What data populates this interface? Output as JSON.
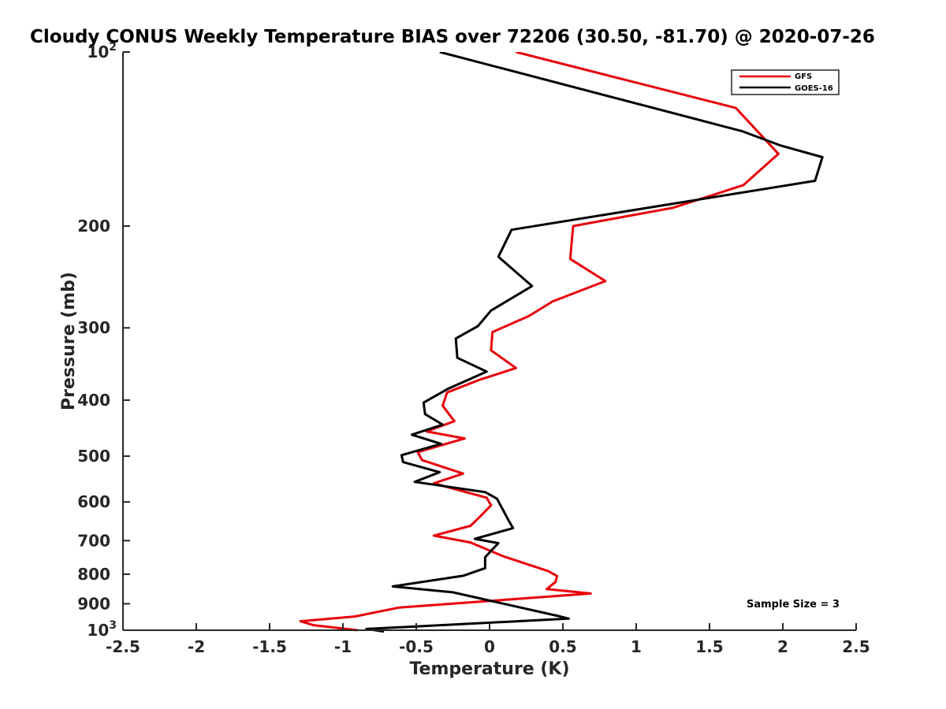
{
  "chart_data": {
    "type": "line",
    "title": "Cloudy CONUS Weekly Temperature BIAS over 72206 (30.50, -81.70) @ 2020-07-26",
    "xlabel": "Temperature (K)",
    "ylabel": "Pressure (mb)",
    "xlim": [
      -2.5,
      2.5
    ],
    "ylim": [
      100,
      1000
    ],
    "y_scale": "log",
    "y_reversed": true,
    "grid": false,
    "legend_position": "top-right",
    "x_ticks": [
      -2.5,
      -2,
      -1.5,
      -1,
      -0.5,
      0,
      0.5,
      1,
      1.5,
      2,
      2.5
    ],
    "x_tick_labels": [
      "-2.5",
      "-2",
      "-1.5",
      "-1",
      "-0.5",
      "0",
      "0.5",
      "1",
      "1.5",
      "2",
      "2.5"
    ],
    "y_ticks": [
      {
        "value": 100,
        "base": "10",
        "exp": "2"
      },
      {
        "value": 200,
        "label": "200"
      },
      {
        "value": 300,
        "label": "300"
      },
      {
        "value": 400,
        "label": "400"
      },
      {
        "value": 500,
        "label": "500"
      },
      {
        "value": 600,
        "label": "600"
      },
      {
        "value": 700,
        "label": "700"
      },
      {
        "value": 800,
        "label": "800"
      },
      {
        "value": 900,
        "label": "900"
      },
      {
        "value": 1000,
        "base": "10",
        "exp": "3"
      }
    ],
    "series": [
      {
        "name": "GFS",
        "color": "#e8000b",
        "points": [
          [
            0.18,
            100
          ],
          [
            1.68,
            125
          ],
          [
            1.86,
            140
          ],
          [
            1.97,
            150
          ],
          [
            1.73,
            170
          ],
          [
            1.25,
            186
          ],
          [
            0.57,
            200
          ],
          [
            0.55,
            228
          ],
          [
            0.79,
            249
          ],
          [
            0.43,
            270
          ],
          [
            0.27,
            286
          ],
          [
            0.02,
            305
          ],
          [
            0.01,
            328
          ],
          [
            0.18,
            352
          ],
          [
            -0.07,
            369
          ],
          [
            -0.29,
            388
          ],
          [
            -0.32,
            409
          ],
          [
            -0.24,
            435
          ],
          [
            -0.43,
            453
          ],
          [
            -0.17,
            466
          ],
          [
            -0.49,
            492
          ],
          [
            -0.46,
            508
          ],
          [
            -0.18,
            536
          ],
          [
            -0.38,
            557
          ],
          [
            -0.02,
            590
          ],
          [
            0.01,
            608
          ],
          [
            -0.07,
            638
          ],
          [
            -0.13,
            660
          ],
          [
            -0.38,
            686
          ],
          [
            -0.13,
            705
          ],
          [
            0.1,
            746
          ],
          [
            0.4,
            790
          ],
          [
            0.46,
            806
          ],
          [
            0.45,
            825
          ],
          [
            0.39,
            849
          ],
          [
            0.69,
            864
          ],
          [
            -0.62,
            914
          ],
          [
            -0.92,
            947
          ],
          [
            -1.29,
            965
          ],
          [
            -1.2,
            980
          ],
          [
            -0.9,
            1000
          ]
        ]
      },
      {
        "name": "GOES-16",
        "color": "#000000",
        "points": [
          [
            -0.34,
            100
          ],
          [
            1.72,
            137
          ],
          [
            1.98,
            145
          ],
          [
            2.27,
            152
          ],
          [
            2.22,
            167
          ],
          [
            0.15,
            203
          ],
          [
            0.06,
            226
          ],
          [
            0.29,
            254
          ],
          [
            0.01,
            280
          ],
          [
            -0.08,
            298
          ],
          [
            -0.23,
            313
          ],
          [
            -0.22,
            338
          ],
          [
            -0.02,
            357
          ],
          [
            -0.28,
            382
          ],
          [
            -0.45,
            404
          ],
          [
            -0.44,
            423
          ],
          [
            -0.32,
            441
          ],
          [
            -0.53,
            459
          ],
          [
            -0.33,
            476
          ],
          [
            -0.6,
            498
          ],
          [
            -0.59,
            512
          ],
          [
            -0.34,
            533
          ],
          [
            -0.51,
            554
          ],
          [
            -0.03,
            577
          ],
          [
            0.05,
            592
          ],
          [
            0.09,
            618
          ],
          [
            0.13,
            646
          ],
          [
            0.16,
            666
          ],
          [
            -0.1,
            695
          ],
          [
            0.06,
            707
          ],
          [
            0.01,
            729
          ],
          [
            -0.03,
            748
          ],
          [
            -0.03,
            781
          ],
          [
            -0.18,
            805
          ],
          [
            -0.66,
            840
          ],
          [
            -0.25,
            860
          ],
          [
            0.46,
            944
          ],
          [
            0.54,
            955
          ],
          [
            -0.84,
            995
          ],
          [
            -0.72,
            1005
          ]
        ]
      }
    ],
    "annotation": "Sample Size = 3"
  }
}
